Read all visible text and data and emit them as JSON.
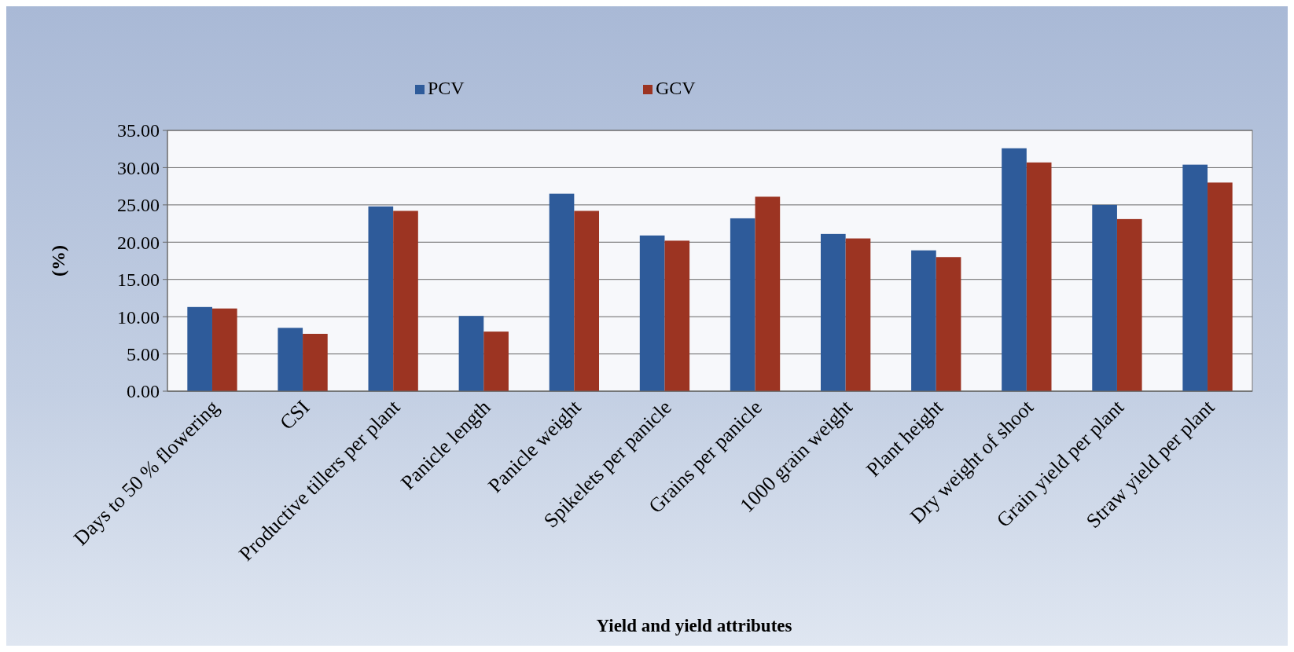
{
  "chart_data": {
    "type": "bar",
    "xlabel": "Yield and yield attributes",
    "ylabel": "(%)",
    "categories": [
      "Days to 50 %  flowering",
      "CSI",
      "Productive tillers per plant",
      "Panicle length",
      "Panicle weight",
      "Spikelets per panicle",
      "Grains per panicle",
      "1000 grain weight",
      "Plant height",
      "Dry weight of shoot",
      "Grain yield per plant",
      "Straw yield per  plant"
    ],
    "series": [
      {
        "name": "PCV",
        "color": "#2e5b9a",
        "values": [
          11.3,
          8.5,
          24.8,
          10.1,
          26.5,
          20.9,
          23.2,
          21.1,
          18.9,
          32.6,
          25.0,
          30.4
        ]
      },
      {
        "name": "GCV",
        "color": "#9c3422",
        "values": [
          11.1,
          7.7,
          24.2,
          8.0,
          24.2,
          20.2,
          26.1,
          20.5,
          18.0,
          30.7,
          23.1,
          28.0
        ]
      }
    ],
    "ylim": [
      0,
      35
    ],
    "yticks": [
      {
        "value": 0,
        "label": "0.00"
      },
      {
        "value": 5,
        "label": "5.00"
      },
      {
        "value": 10,
        "label": "10.00"
      },
      {
        "value": 15,
        "label": "15.00"
      },
      {
        "value": 20,
        "label": "20.00"
      },
      {
        "value": 25,
        "label": "25.00"
      },
      {
        "value": 30,
        "label": "30.00"
      },
      {
        "value": 35,
        "label": "35.00"
      }
    ],
    "grid": "y",
    "legend": "top"
  }
}
